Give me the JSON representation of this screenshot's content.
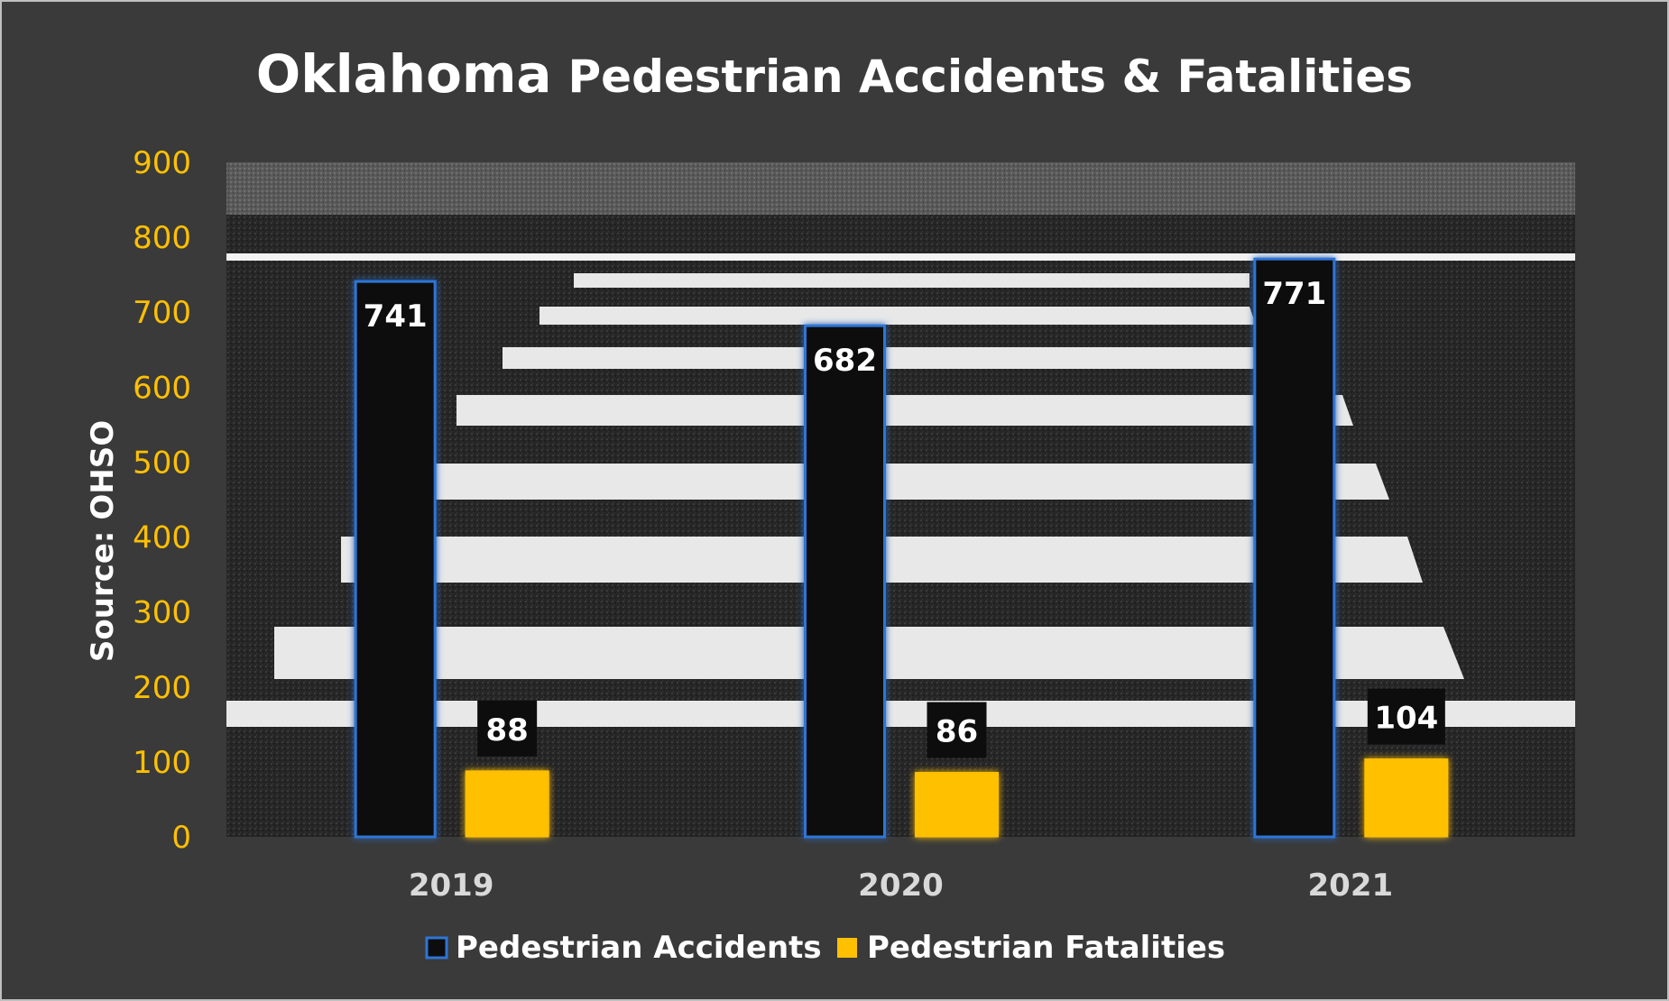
{
  "chart_data": {
    "type": "bar",
    "title_part1": "Oklahoma",
    "title_part2": "Pedestrian Accidents & Fatalities",
    "ylabel": "Source: OHSO",
    "xlabel": "",
    "categories": [
      "2019",
      "2020",
      "2021"
    ],
    "series": [
      {
        "name": "Pedestrian Accidents",
        "values": [
          741,
          682,
          771
        ],
        "color": "#0d0d0d",
        "outline": "#2e75d6"
      },
      {
        "name": "Pedestrian Fatalities",
        "values": [
          88,
          86,
          104
        ],
        "color": "#ffc000",
        "outline": "#ffc000"
      }
    ],
    "ylim": [
      0,
      900
    ],
    "yticks": [
      "0",
      "100",
      "200",
      "300",
      "400",
      "500",
      "600",
      "700",
      "800",
      "900"
    ],
    "grid": false,
    "legend": "bottom",
    "background": "crosswalk asphalt photo",
    "colors": {
      "axis_text": "#ffc000",
      "category_text": "#d9d9d9",
      "frame_bg": "#3a3a3a"
    }
  }
}
